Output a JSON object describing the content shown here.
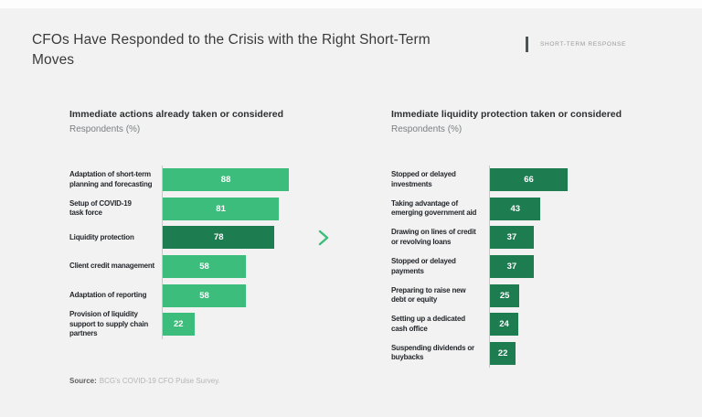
{
  "header": {
    "title": "CFOs Have Responded to the Crisis with the Right Short-Term Moves",
    "kicker": "SHORT-TERM RESPONSE"
  },
  "footer": {
    "source_label": "Source:",
    "source_text": "BCG's COVID-19 CFO Pulse Survey."
  },
  "colors": {
    "background": "#f2f2f2",
    "bar_light_green": "#3dbd7c",
    "bar_dark_green": "#1e7c51",
    "chevron_green": "#3dbd7c",
    "kicker_bar": "#4e5356"
  },
  "chart_data": [
    {
      "type": "bar",
      "orientation": "horizontal",
      "title": "Immediate actions already taken or considered",
      "subtitle": "Respondents (%)",
      "xlim": [
        0,
        100
      ],
      "grid": false,
      "value_labels": "inside-center-white",
      "categories": [
        "Adaptation of short-term\nplanning and forecasting",
        "Setup of COVID-19\ntask force",
        "Liquidity protection",
        "Client credit management",
        "Adaptation of reporting",
        "Provision of liquidity\nsupport to supply chain\npartners"
      ],
      "values": [
        88,
        81,
        78,
        58,
        58,
        22
      ],
      "bar_colors": [
        "light",
        "light",
        "dark",
        "light",
        "light",
        "light"
      ],
      "highlighted_category": "Liquidity protection"
    },
    {
      "type": "bar",
      "orientation": "horizontal",
      "title": "Immediate liquidity protection taken or considered",
      "subtitle": "Respondents (%)",
      "xlim": [
        0,
        100
      ],
      "grid": false,
      "value_labels": "inside-center-white",
      "categories": [
        "Stopped or delayed\ninvestments",
        "Taking advantage of\nemerging government aid",
        "Drawing on lines of credit\nor revolving loans",
        "Stopped or delayed\npayments",
        "Preparing to raise new\ndebt or equity",
        "Setting up a dedicated\ncash office",
        "Suspending dividends or\nbuybacks"
      ],
      "values": [
        66,
        43,
        37,
        37,
        25,
        24,
        22
      ],
      "bar_colors": [
        "dark",
        "dark",
        "dark",
        "dark",
        "dark",
        "dark",
        "dark"
      ]
    }
  ]
}
